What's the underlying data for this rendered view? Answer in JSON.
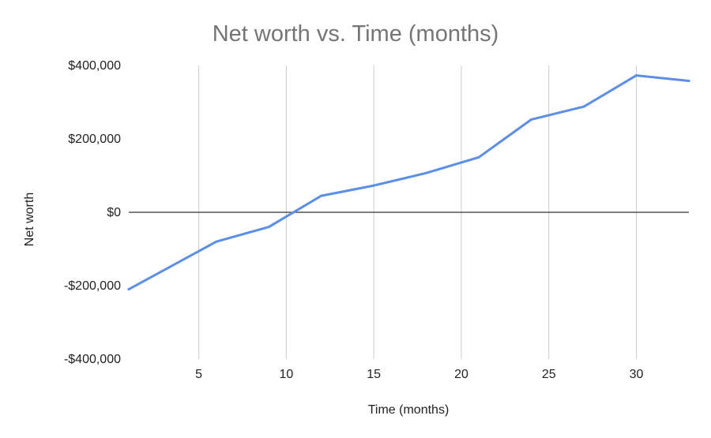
{
  "chart_data": {
    "type": "line",
    "title": "Net worth vs. Time (months)",
    "xlabel": "Time (months)",
    "ylabel": "Net worth",
    "xlim": [
      1,
      33
    ],
    "ylim": [
      -400000,
      400000
    ],
    "x_ticks": [
      5,
      10,
      15,
      20,
      25,
      30
    ],
    "x_tick_labels": [
      "5",
      "10",
      "15",
      "20",
      "25",
      "30"
    ],
    "y_ticks": [
      -400000,
      -200000,
      0,
      200000,
      400000
    ],
    "y_tick_labels": [
      "-$400,000",
      "-$200,000",
      "$0",
      "$200,000",
      "$400,000"
    ],
    "grid": "vertical",
    "legend": "none",
    "series": [
      {
        "color": "#5b8ee6",
        "x": [
          1,
          6,
          9,
          12,
          15,
          18,
          21,
          24,
          27,
          30,
          33
        ],
        "y": [
          -210000,
          -80000,
          -40000,
          45000,
          73000,
          107000,
          150000,
          253000,
          288000,
          373000,
          358000
        ]
      }
    ]
  }
}
